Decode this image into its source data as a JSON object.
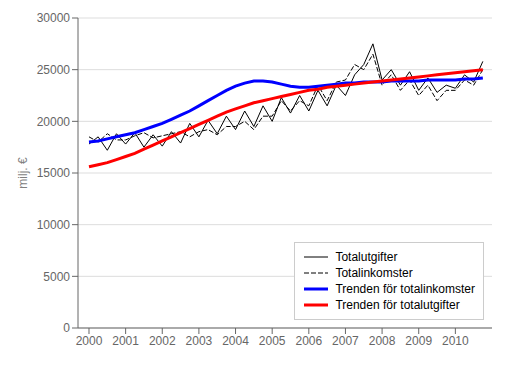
{
  "chart_data": {
    "type": "line",
    "x": [
      2000,
      2000.25,
      2000.5,
      2000.75,
      2001,
      2001.25,
      2001.5,
      2001.75,
      2002,
      2002.25,
      2002.5,
      2002.75,
      2003,
      2003.25,
      2003.5,
      2003.75,
      2004,
      2004.25,
      2004.5,
      2004.75,
      2005,
      2005.25,
      2005.5,
      2005.75,
      2006,
      2006.25,
      2006.5,
      2006.75,
      2007,
      2007.25,
      2007.5,
      2007.75,
      2008,
      2008.25,
      2008.5,
      2008.75,
      2009,
      2009.25,
      2009.5,
      2009.75,
      2010,
      2010.25,
      2010.5,
      2010.75
    ],
    "y_label": "milj. €",
    "xlim": [
      1999.7,
      2011
    ],
    "xticks": [
      2000,
      2001,
      2002,
      2003,
      2004,
      2005,
      2006,
      2007,
      2008,
      2009,
      2010
    ],
    "ylim": [
      0,
      30000
    ],
    "yticks": [
      0,
      5000,
      10000,
      15000,
      20000,
      25000,
      30000
    ],
    "grid": "y",
    "legend": "lower right",
    "series": [
      {
        "name": "Totalutgifter",
        "color": "#000000",
        "line_style": "solid",
        "values": [
          17800,
          18500,
          17200,
          18800,
          17800,
          18900,
          17500,
          18700,
          17600,
          19000,
          17900,
          19800,
          18500,
          20100,
          18800,
          20500,
          19200,
          21000,
          19500,
          21500,
          20000,
          22300,
          20800,
          22500,
          21000,
          23000,
          21500,
          23500,
          22500,
          24500,
          25500,
          27500,
          24000,
          25000,
          23500,
          24800,
          23000,
          24200,
          22800,
          23500,
          23200,
          24500,
          23800,
          25800
        ]
      },
      {
        "name": "Totalinkomster",
        "color": "#000000",
        "line_style": "dashed",
        "values": [
          18500,
          18000,
          18800,
          18200,
          18200,
          18600,
          18900,
          18400,
          18600,
          18800,
          19000,
          18500,
          19000,
          19200,
          18700,
          19500,
          19500,
          20000,
          19200,
          20500,
          20500,
          22000,
          21000,
          22000,
          21500,
          23500,
          22000,
          23800,
          24000,
          25500,
          25000,
          26500,
          23500,
          24500,
          23000,
          24000,
          22500,
          23500,
          22000,
          23000,
          23000,
          24000,
          23500,
          25000
        ]
      },
      {
        "name": "Trenden för totalinkomster",
        "color": "#0000ff",
        "line_style": "solid",
        "values": [
          18000,
          18100,
          18300,
          18500,
          18700,
          18900,
          19200,
          19500,
          19800,
          20200,
          20600,
          21000,
          21500,
          22000,
          22500,
          23000,
          23400,
          23700,
          23900,
          23900,
          23800,
          23600,
          23400,
          23300,
          23300,
          23400,
          23500,
          23600,
          23700,
          23700,
          23800,
          23800,
          23800,
          23900,
          23900,
          23900,
          23900,
          24000,
          24000,
          24000,
          24000,
          24100,
          24100,
          24200
        ]
      },
      {
        "name": "Trenden för totalutgifter",
        "color": "#ff0000",
        "line_style": "solid",
        "values": [
          15600,
          15800,
          16000,
          16300,
          16600,
          16900,
          17300,
          17700,
          18100,
          18500,
          18900,
          19300,
          19700,
          20100,
          20500,
          20900,
          21200,
          21500,
          21800,
          22000,
          22200,
          22400,
          22600,
          22800,
          23000,
          23100,
          23300,
          23400,
          23500,
          23600,
          23700,
          23800,
          23900,
          24000,
          24100,
          24200,
          24300,
          24400,
          24500,
          24600,
          24700,
          24800,
          24900,
          25000
        ]
      }
    ]
  }
}
